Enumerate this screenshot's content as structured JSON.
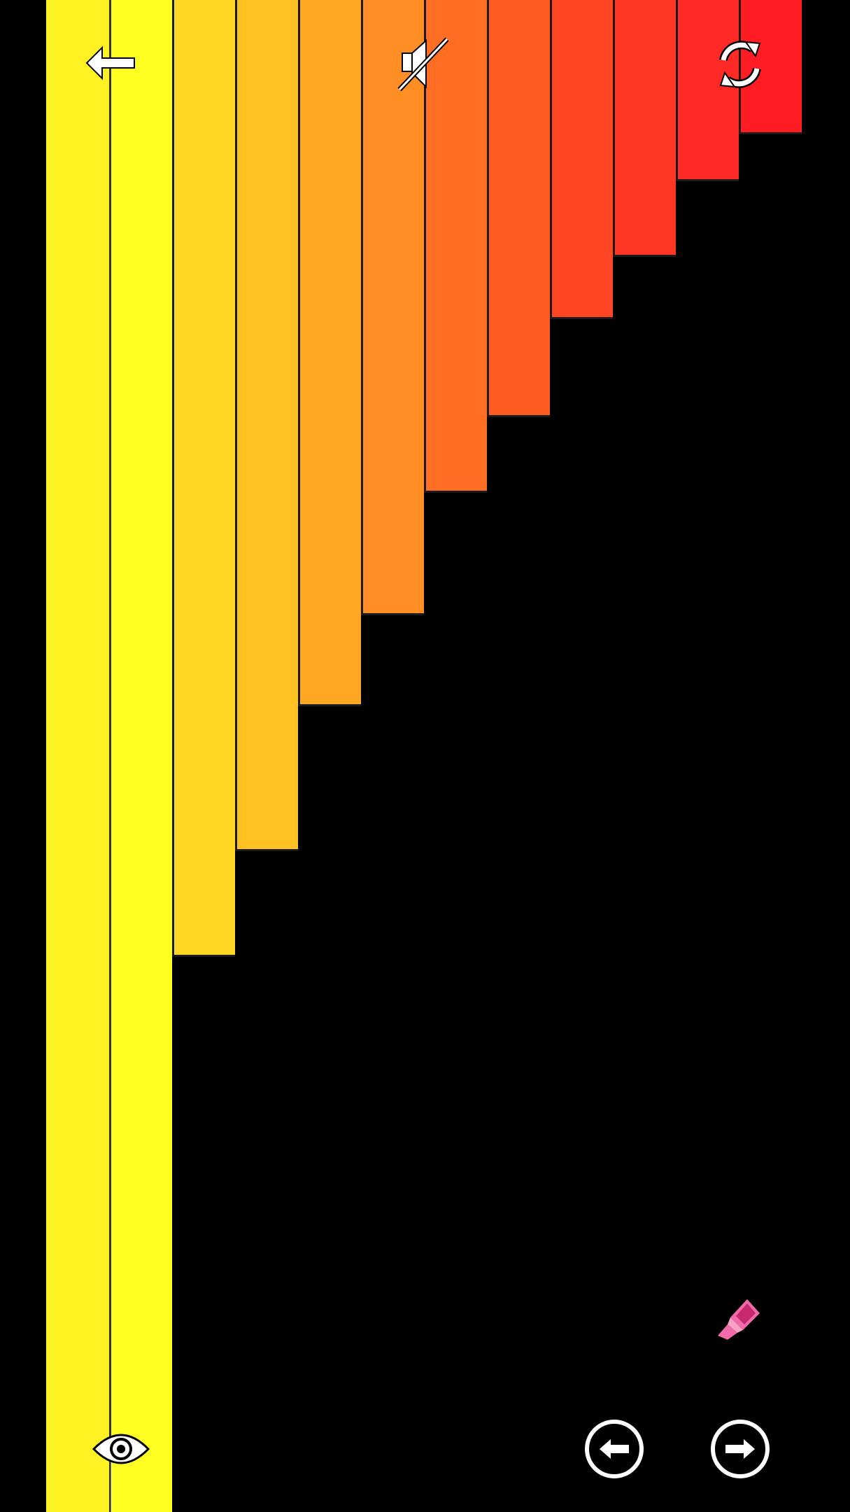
{
  "game": {
    "screen": "color-bars-puzzle",
    "bars": [
      {
        "color": "#FFF223",
        "fill": 1.0
      },
      {
        "color": "#FFFF22",
        "fill": 1.0
      },
      {
        "color": "#FFD824",
        "fill": 0.633
      },
      {
        "color": "#FFC222",
        "fill": 0.563
      },
      {
        "color": "#FFA622",
        "fill": 0.467
      },
      {
        "color": "#FF8E24",
        "fill": 0.407
      },
      {
        "color": "#FF6E22",
        "fill": 0.326
      },
      {
        "color": "#FF5C22",
        "fill": 0.276
      },
      {
        "color": "#FF4624",
        "fill": 0.211
      },
      {
        "color": "#FF3624",
        "fill": 0.17
      },
      {
        "color": "#FF2A26",
        "fill": 0.12
      },
      {
        "color": "#FF1C22",
        "fill": 0.089
      }
    ],
    "highlighted_bar_index": 1
  },
  "toolbar": {
    "back_icon": "arrow-left-icon",
    "mute_icon": "speaker-muted-icon",
    "reset_icon": "refresh-icon"
  },
  "controls": {
    "marker_icon": "marker-icon",
    "marker_color": "#F06BA8",
    "eye_icon": "eye-icon",
    "prev_icon": "arrow-left-circle-icon",
    "next_icon": "arrow-right-circle-icon"
  },
  "colors": {
    "background": "#000000",
    "icon": "#FFFFFF",
    "divider": "#1A1A1A"
  }
}
